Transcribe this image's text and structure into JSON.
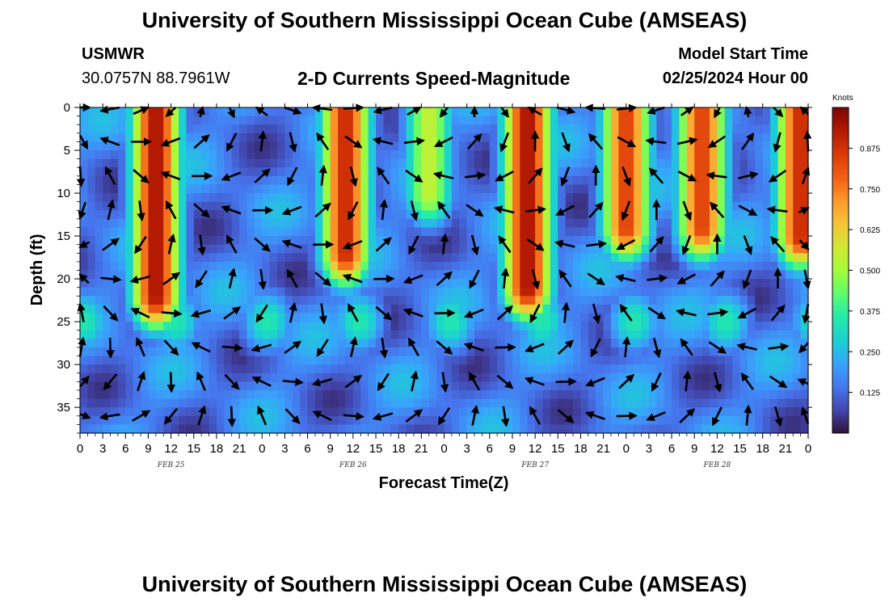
{
  "header": {
    "title": "University of Southern Mississippi Ocean Cube (AMSEAS)",
    "station_id": "USMWR",
    "coords": "30.0757N  88.7961W",
    "subtitle": "2-D Currents Speed-Magnitude",
    "model_start_label": "Model Start Time",
    "model_start_value": "02/25/2024 Hour 00"
  },
  "footer": {
    "title": "University of Southern Mississippi Ocean Cube (AMSEAS)"
  },
  "chart_data": {
    "type": "heatmap",
    "title": "2-D Currents Speed-Magnitude",
    "xlabel": "Forecast Time(Z)",
    "ylabel": "Depth (ft)",
    "xlim_hours": [
      0,
      96
    ],
    "ylim_depth_ft": [
      0,
      38
    ],
    "x_tick_hours": [
      0,
      3,
      6,
      9,
      12,
      15,
      18,
      21,
      24,
      27,
      30,
      33,
      36,
      39,
      42,
      45,
      48,
      51,
      54,
      57,
      60,
      63,
      66,
      69,
      72,
      75,
      78,
      81,
      84,
      87,
      90,
      93,
      96
    ],
    "x_tick_labels": [
      "0",
      "3",
      "6",
      "9",
      "12",
      "15",
      "18",
      "21",
      "0",
      "3",
      "6",
      "9",
      "12",
      "15",
      "18",
      "21",
      "0",
      "3",
      "6",
      "9",
      "12",
      "15",
      "18",
      "21",
      "0",
      "3",
      "6",
      "9",
      "12",
      "15",
      "18",
      "21",
      "0"
    ],
    "date_labels": [
      {
        "text": "FEB 25",
        "hour": 12
      },
      {
        "text": "FEB 26",
        "hour": 36
      },
      {
        "text": "FEB 27",
        "hour": 60
      },
      {
        "text": "FEB 28",
        "hour": 84
      }
    ],
    "y_ticks": [
      0,
      5,
      10,
      15,
      20,
      25,
      30,
      35
    ],
    "y_tick_labels": [
      "0",
      "5",
      "10",
      "15",
      "20",
      "25",
      "30",
      "35"
    ],
    "colorbar": {
      "unit": "Knots",
      "range": [
        0,
        1.0
      ],
      "labels": [
        "0.125",
        "0.250",
        "0.375",
        "0.500",
        "0.625",
        "0.750",
        "0.875"
      ],
      "label_values": [
        0.125,
        0.25,
        0.375,
        0.5,
        0.625,
        0.75,
        0.875
      ]
    },
    "speed_maxima": [
      {
        "hour": 10,
        "speed": 0.95,
        "depth_top": 0,
        "depth_bottom": 22
      },
      {
        "hour": 35,
        "speed": 0.9,
        "depth_top": 0,
        "depth_bottom": 17
      },
      {
        "hour": 46,
        "speed": 0.55,
        "depth_top": 0,
        "depth_bottom": 10
      },
      {
        "hour": 59,
        "speed": 0.95,
        "depth_top": 0,
        "depth_bottom": 21
      },
      {
        "hour": 72,
        "speed": 0.85,
        "depth_top": 0,
        "depth_bottom": 14
      },
      {
        "hour": 82,
        "speed": 0.85,
        "depth_top": 0,
        "depth_bottom": 14
      },
      {
        "hour": 95,
        "speed": 0.9,
        "depth_top": 0,
        "depth_bottom": 15
      }
    ],
    "vector_hours": [
      0,
      4,
      8,
      12,
      16,
      20,
      24,
      28,
      32,
      36,
      40,
      44,
      48,
      52,
      56,
      60,
      64,
      68,
      72,
      76,
      80,
      84,
      88,
      92,
      96
    ],
    "vector_depths_ft": [
      0,
      4,
      8,
      12,
      16,
      20,
      24,
      28,
      32,
      36
    ]
  }
}
